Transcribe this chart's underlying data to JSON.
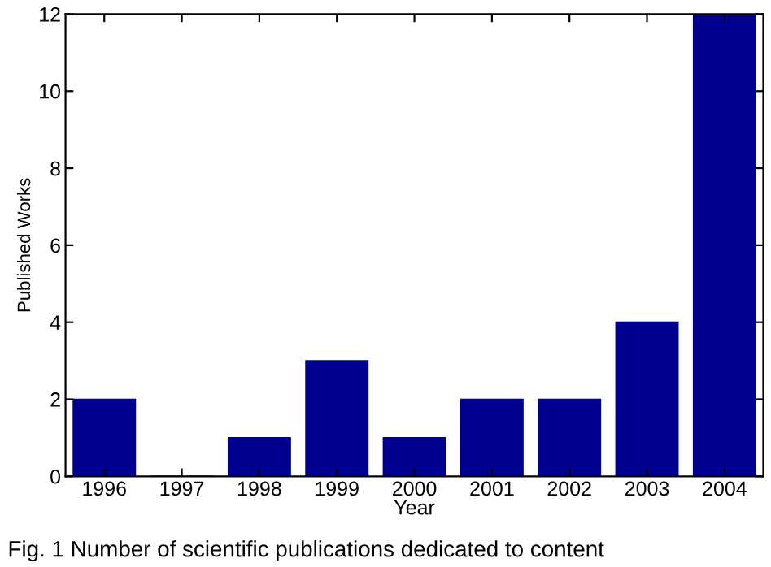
{
  "chart_data": {
    "type": "bar",
    "xlabel": "Year",
    "ylabel": "Published Works",
    "categories": [
      "1996",
      "1997",
      "1998",
      "1999",
      "2000",
      "2001",
      "2002",
      "2003",
      "2004"
    ],
    "values": [
      2,
      0,
      1,
      3,
      1,
      2,
      2,
      4,
      12
    ],
    "color": "#00008f",
    "ylim": [
      0,
      12
    ],
    "yticks": [
      0,
      2,
      4,
      6,
      8,
      10,
      12
    ],
    "grid": false,
    "annotations": [
      "Fig. 1 Number of scientific publications dedicated to content"
    ]
  }
}
